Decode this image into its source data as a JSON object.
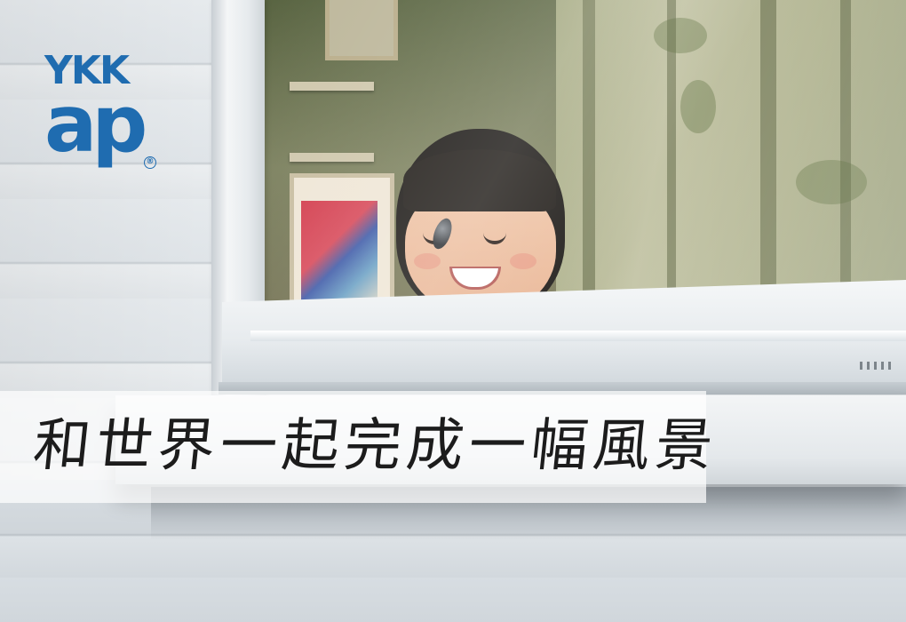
{
  "brand": {
    "logo_line1": "YKK",
    "logo_line2": "ap",
    "registered_mark": "®",
    "color": "#1f6cb0"
  },
  "headline": {
    "text": "和世界一起完成一幅風景"
  }
}
